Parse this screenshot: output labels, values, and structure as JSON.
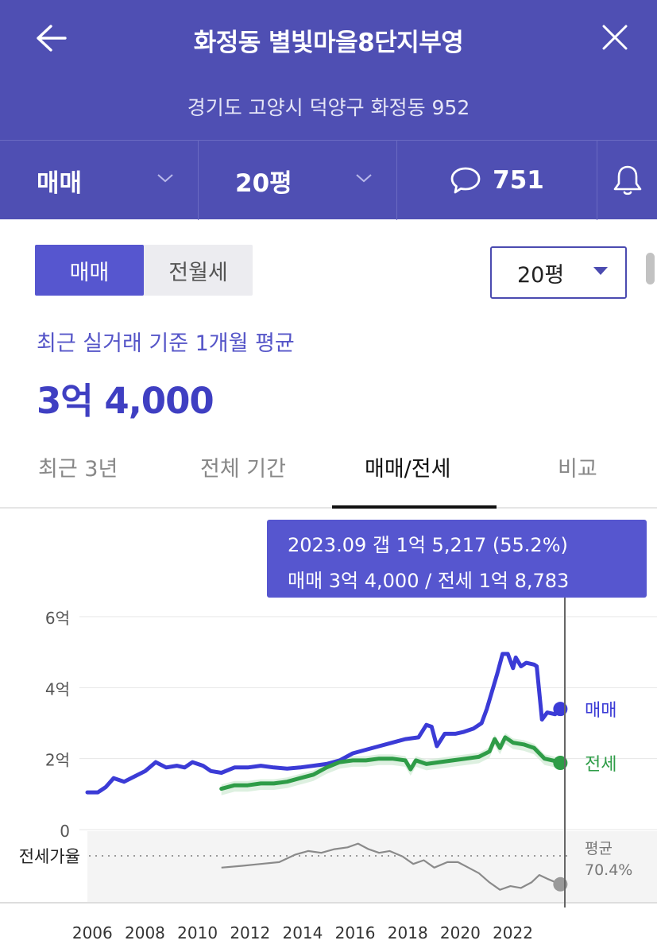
{
  "header": {
    "title": "화정동 별빛마을8단지부영",
    "address": "경기도 고양시 덕양구 화정동 952",
    "deal_type": "매매",
    "size": "20평",
    "comment_count": "751"
  },
  "controls": {
    "segments": [
      "매매",
      "전월세"
    ],
    "active_segment": "매매",
    "size_select": "20평"
  },
  "summary": {
    "label": "최근 실거래 기준 1개월 평균",
    "price": "3억 4,000"
  },
  "tabs": [
    "최근 3년",
    "전체 기간",
    "매매/전세",
    "비교"
  ],
  "active_tab": "매매/전세",
  "tooltip": {
    "line1": "2023.09  갭 1억 5,217 (55.2%)",
    "line2": "매매 3억 4,000 / 전세 1억 8,783"
  },
  "chart_data": {
    "type": "line",
    "x_ticks": [
      "2006",
      "2008",
      "2010",
      "2012",
      "2014",
      "2016",
      "2018",
      "2020",
      "2022"
    ],
    "y_ticks": [
      "6억",
      "4억",
      "2억",
      "0"
    ],
    "y_unit": "억",
    "ylim": [
      0,
      6
    ],
    "xlim": [
      2005.9,
      2024.1
    ],
    "grid": true,
    "series": [
      {
        "name": "매매",
        "color": "#3b3bd6",
        "points": [
          [
            2005.9,
            1.05
          ],
          [
            2006.3,
            1.05
          ],
          [
            2006.6,
            1.2
          ],
          [
            2006.9,
            1.45
          ],
          [
            2007.3,
            1.35
          ],
          [
            2007.7,
            1.5
          ],
          [
            2008.1,
            1.65
          ],
          [
            2008.5,
            1.9
          ],
          [
            2008.9,
            1.75
          ],
          [
            2009.3,
            1.8
          ],
          [
            2009.6,
            1.75
          ],
          [
            2009.9,
            1.9
          ],
          [
            2010.3,
            1.8
          ],
          [
            2010.6,
            1.65
          ],
          [
            2011.0,
            1.6
          ],
          [
            2011.5,
            1.75
          ],
          [
            2012.0,
            1.75
          ],
          [
            2012.5,
            1.8
          ],
          [
            2013.0,
            1.75
          ],
          [
            2013.5,
            1.72
          ],
          [
            2014.0,
            1.75
          ],
          [
            2014.5,
            1.8
          ],
          [
            2015.0,
            1.85
          ],
          [
            2015.5,
            1.95
          ],
          [
            2016.0,
            2.15
          ],
          [
            2016.5,
            2.25
          ],
          [
            2017.0,
            2.35
          ],
          [
            2017.5,
            2.45
          ],
          [
            2018.0,
            2.55
          ],
          [
            2018.5,
            2.6
          ],
          [
            2018.8,
            2.95
          ],
          [
            2019.0,
            2.9
          ],
          [
            2019.2,
            2.35
          ],
          [
            2019.5,
            2.7
          ],
          [
            2019.9,
            2.7
          ],
          [
            2020.2,
            2.75
          ],
          [
            2020.6,
            2.85
          ],
          [
            2020.9,
            3.0
          ],
          [
            2021.1,
            3.4
          ],
          [
            2021.3,
            3.9
          ],
          [
            2021.5,
            4.4
          ],
          [
            2021.7,
            4.95
          ],
          [
            2021.9,
            4.95
          ],
          [
            2022.1,
            4.55
          ],
          [
            2022.2,
            4.85
          ],
          [
            2022.4,
            4.6
          ],
          [
            2022.6,
            4.7
          ],
          [
            2022.9,
            4.65
          ],
          [
            2023.0,
            4.6
          ],
          [
            2023.2,
            3.1
          ],
          [
            2023.4,
            3.3
          ],
          [
            2023.7,
            3.25
          ],
          [
            2023.9,
            3.4
          ]
        ]
      },
      {
        "name": "전세",
        "color": "#2e9c47",
        "points": [
          [
            2011.0,
            1.15
          ],
          [
            2011.5,
            1.25
          ],
          [
            2012.0,
            1.25
          ],
          [
            2012.5,
            1.3
          ],
          [
            2013.0,
            1.3
          ],
          [
            2013.5,
            1.35
          ],
          [
            2014.0,
            1.45
          ],
          [
            2014.5,
            1.55
          ],
          [
            2015.0,
            1.75
          ],
          [
            2015.5,
            1.9
          ],
          [
            2016.0,
            1.95
          ],
          [
            2016.5,
            1.95
          ],
          [
            2017.0,
            2.0
          ],
          [
            2017.5,
            2.0
          ],
          [
            2018.0,
            1.95
          ],
          [
            2018.2,
            1.7
          ],
          [
            2018.4,
            1.95
          ],
          [
            2018.8,
            1.85
          ],
          [
            2019.3,
            1.9
          ],
          [
            2019.8,
            1.95
          ],
          [
            2020.3,
            2.0
          ],
          [
            2020.8,
            2.05
          ],
          [
            2021.2,
            2.2
          ],
          [
            2021.4,
            2.55
          ],
          [
            2021.6,
            2.3
          ],
          [
            2021.8,
            2.6
          ],
          [
            2022.1,
            2.45
          ],
          [
            2022.5,
            2.4
          ],
          [
            2022.9,
            2.3
          ],
          [
            2023.3,
            2.0
          ],
          [
            2023.6,
            1.95
          ],
          [
            2023.9,
            1.88
          ]
        ]
      }
    ],
    "ratio": {
      "label": "전세가율",
      "avg_label": "평균",
      "avg_value": "70.4%",
      "color": "#8a8a8a",
      "points": [
        [
          2011.0,
          64
        ],
        [
          2011.8,
          65
        ],
        [
          2012.5,
          66
        ],
        [
          2013.2,
          67
        ],
        [
          2013.8,
          71
        ],
        [
          2014.3,
          73
        ],
        [
          2014.8,
          72
        ],
        [
          2015.3,
          74
        ],
        [
          2015.8,
          75
        ],
        [
          2016.2,
          77
        ],
        [
          2016.6,
          74
        ],
        [
          2017.0,
          72
        ],
        [
          2017.4,
          73
        ],
        [
          2017.9,
          70
        ],
        [
          2018.3,
          66
        ],
        [
          2018.7,
          68
        ],
        [
          2019.1,
          64
        ],
        [
          2019.6,
          67
        ],
        [
          2020.0,
          67
        ],
        [
          2020.4,
          64
        ],
        [
          2020.8,
          61
        ],
        [
          2021.2,
          56
        ],
        [
          2021.6,
          52
        ],
        [
          2022.0,
          54
        ],
        [
          2022.4,
          53
        ],
        [
          2022.8,
          56
        ],
        [
          2023.1,
          60
        ],
        [
          2023.4,
          58
        ],
        [
          2023.9,
          55
        ]
      ],
      "avg": 70.4,
      "range": [
        45,
        82
      ]
    },
    "end_labels": {
      "sale": "매매",
      "jeonse": "전세"
    }
  },
  "icons": {
    "back": "arrow-left-icon",
    "close": "close-icon",
    "comment": "speech-bubble-icon",
    "bell": "bell-icon"
  }
}
